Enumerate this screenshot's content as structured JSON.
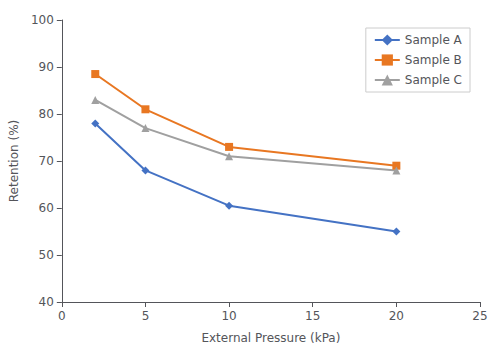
{
  "chart_data": {
    "type": "line",
    "xlabel": "External Pressure (kPa)",
    "ylabel": "Retention (%)",
    "x": [
      2,
      5,
      10,
      20
    ],
    "series": [
      {
        "name": "Sample A",
        "color": "#4472C4",
        "marker": "diamond",
        "values": [
          78,
          68,
          60.5,
          55
        ]
      },
      {
        "name": "Sample B",
        "color": "#E87722",
        "marker": "square",
        "values": [
          88.5,
          81,
          73,
          69
        ]
      },
      {
        "name": "Sample C",
        "color": "#A0A0A0",
        "marker": "triangle",
        "values": [
          83,
          77,
          71,
          68
        ]
      }
    ],
    "xlim": [
      0,
      25
    ],
    "ylim": [
      40,
      100
    ],
    "xticks": [
      0,
      5,
      10,
      15,
      20,
      25
    ],
    "yticks": [
      40,
      50,
      60,
      70,
      80,
      90,
      100
    ],
    "grid": false,
    "legend": "upper right"
  }
}
